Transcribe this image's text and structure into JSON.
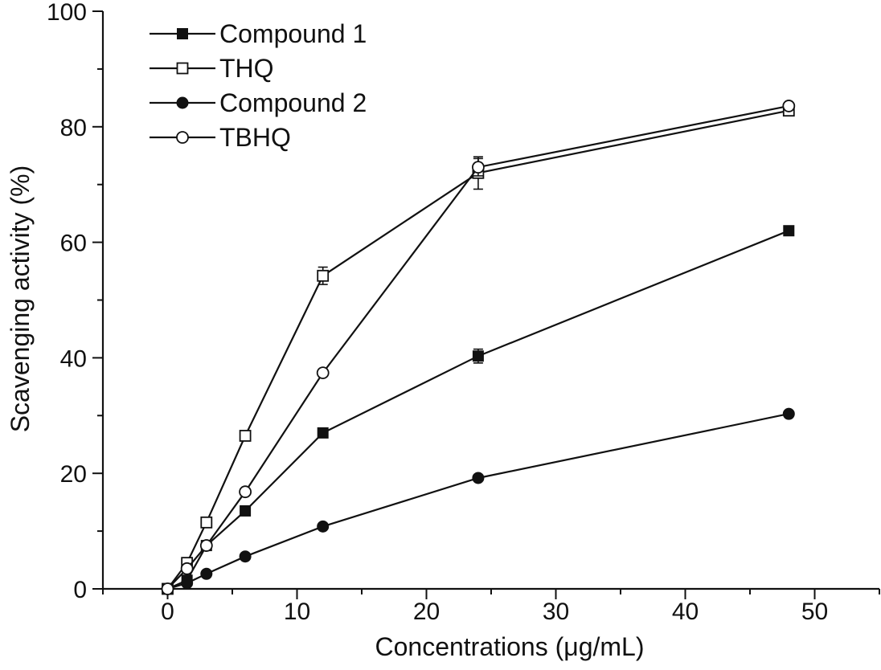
{
  "chart_data": {
    "type": "line",
    "title": "",
    "xlabel": "Concentrations (μg/mL)",
    "ylabel": "Scavenging activity (%)",
    "xlim": [
      -5,
      55
    ],
    "ylim": [
      0,
      100
    ],
    "x_ticks": [
      0,
      10,
      20,
      30,
      40,
      50
    ],
    "y_ticks": [
      0,
      20,
      40,
      60,
      80,
      100
    ],
    "grid": false,
    "legend_position": "top-left",
    "x": [
      0,
      1.5,
      3,
      6,
      12,
      24,
      48
    ],
    "series": [
      {
        "name": "Compound 1",
        "marker": "filled-square",
        "values": [
          0,
          1.5,
          7.5,
          13.5,
          27,
          40.3,
          62
        ],
        "errors": [
          0,
          0.3,
          0.4,
          0.5,
          0.6,
          1.2,
          0.6
        ]
      },
      {
        "name": "THQ",
        "marker": "open-square",
        "values": [
          0,
          4.5,
          11.5,
          26.5,
          54.2,
          72,
          82.8
        ],
        "errors": [
          0,
          0.4,
          0.5,
          0.6,
          1.5,
          2.8,
          0.6
        ]
      },
      {
        "name": "Compound 2",
        "marker": "filled-circle",
        "values": [
          0,
          1,
          2.6,
          5.6,
          10.8,
          19.2,
          30.3
        ],
        "errors": [
          0,
          0.2,
          0.2,
          0.3,
          0.3,
          0.4,
          0.4
        ]
      },
      {
        "name": "TBHQ",
        "marker": "open-circle",
        "values": [
          0,
          3.5,
          7.5,
          16.8,
          37.4,
          73,
          83.6
        ],
        "errors": [
          0,
          0.3,
          0.4,
          0.5,
          0.6,
          1.5,
          0.5
        ]
      }
    ]
  }
}
